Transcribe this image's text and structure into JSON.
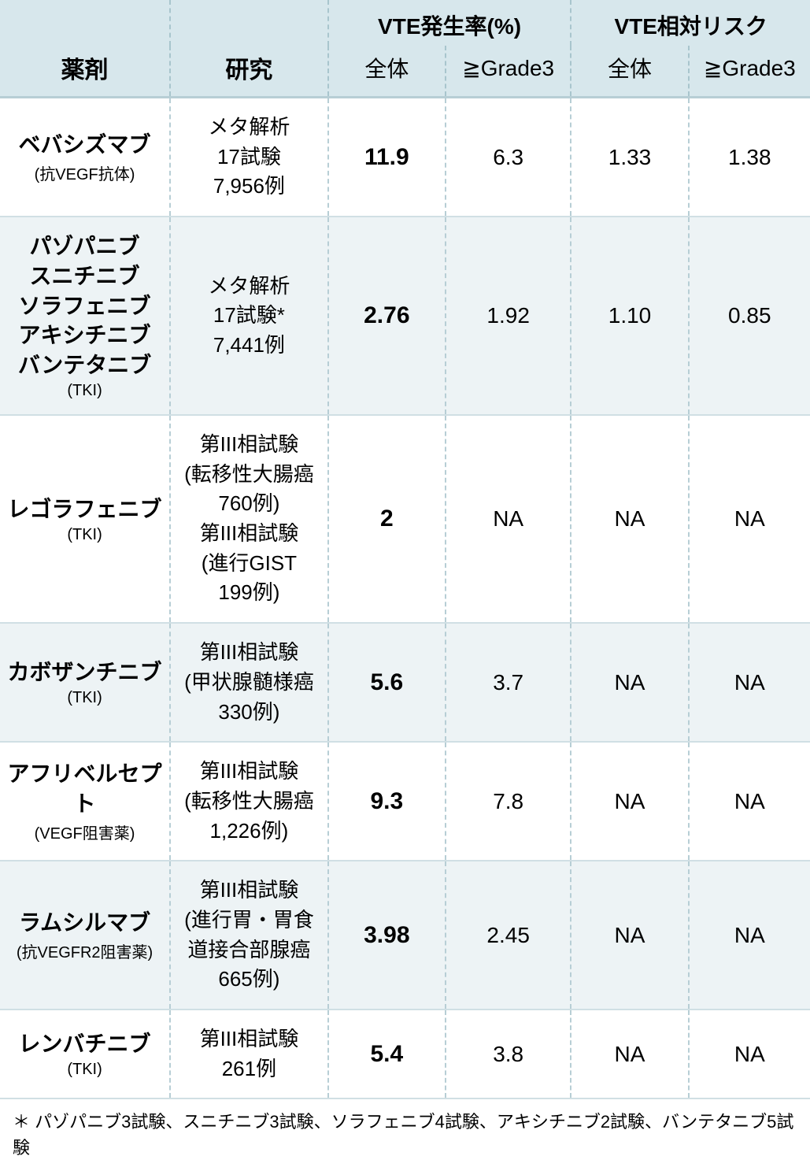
{
  "header": {
    "group1": "VTE発生率(%)",
    "group2": "VTE相対リスク",
    "col_drug": "薬剤",
    "col_study": "研究",
    "sub_all1": "全体",
    "sub_g3_1": "≧Grade3",
    "sub_all2": "全体",
    "sub_g3_2": "≧Grade3"
  },
  "rows": [
    {
      "drug": "ベバシズマブ",
      "drug_type": "(抗VEGF抗体)",
      "study_html": "メタ解析<br>17試験<br>7,956例",
      "v1": "11.9",
      "v2": "6.3",
      "v3": "1.33",
      "v4": "1.38"
    },
    {
      "drug": "パゾパニブ<br>スニチニブ<br>ソラフェニブ<br>アキシチニブ<br>バンテタニブ",
      "drug_type": "(TKI)",
      "study_html": "メタ解析<br>17試験*<br>7,441例",
      "v1": "2.76",
      "v2": "1.92",
      "v3": "1.10",
      "v4": "0.85"
    },
    {
      "drug": "レゴラフェニブ",
      "drug_type": "(TKI)",
      "study_html": "第III相試験<br>(転移性大腸癌<br>760例)<br>第III相試験<br>(進行GIST<br>199例)",
      "v1": "2",
      "v2": "NA",
      "v3": "NA",
      "v4": "NA"
    },
    {
      "drug": "カボザンチニブ",
      "drug_type": "(TKI)",
      "study_html": "第III相試験<br>(甲状腺髄様癌<br>330例)",
      "v1": "5.6",
      "v2": "3.7",
      "v3": "NA",
      "v4": "NA"
    },
    {
      "drug": "アフリベルセプト",
      "drug_type": "(VEGF阻害薬)",
      "study_html": "第III相試験<br>(転移性大腸癌<br>1,226例)",
      "v1": "9.3",
      "v2": "7.8",
      "v3": "NA",
      "v4": "NA"
    },
    {
      "drug": "ラムシルマブ",
      "drug_type": "(抗VEGFR2阻害薬)",
      "study_html": "第III相試験<br>(進行胃・胃食<br>道接合部腺癌<br>665例)",
      "v1": "3.98",
      "v2": "2.45",
      "v3": "NA",
      "v4": "NA"
    },
    {
      "drug": "レンバチニブ",
      "drug_type": "(TKI)",
      "study_html": "第III相試験<br>261例",
      "v1": "5.4",
      "v2": "3.8",
      "v3": "NA",
      "v4": "NA"
    }
  ],
  "footnote": "＊ パゾパニブ3試験、スニチニブ3試験、ソラフェニブ4試験、アキシチニブ2試験、バンテタニブ5試験",
  "styling": {
    "header_bg": "#d7e7ec",
    "row_alt_bg": "#edf3f5",
    "row_bg": "#ffffff",
    "border_dashed": "#b7ced5",
    "border_solid": "#d0dfe4",
    "text_color": "#000000",
    "font_drug_name": 28,
    "font_drug_type": 20,
    "font_study": 26,
    "font_value": 28,
    "font_value_bold": 30,
    "font_header_group": 28,
    "font_header_col": 30,
    "font_footnote": 22
  }
}
